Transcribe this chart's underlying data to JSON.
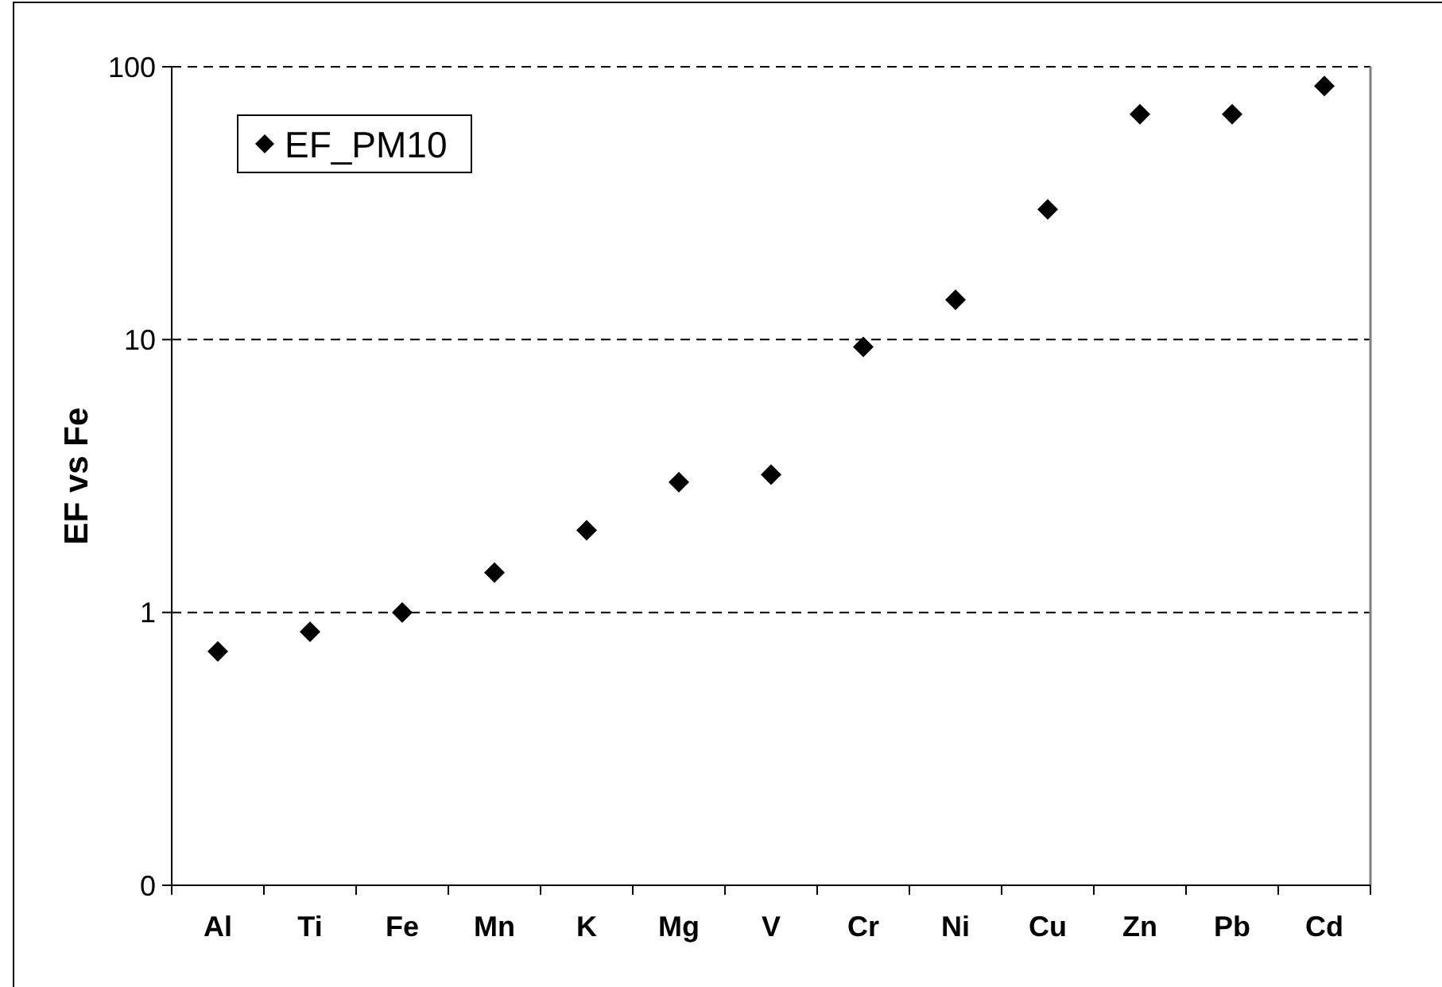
{
  "chart_data": {
    "type": "scatter",
    "ylabel": "EF vs Fe",
    "categories": [
      "Al",
      "Ti",
      "Fe",
      "Mn",
      "K",
      "Mg",
      "V",
      "Cr",
      "Ni",
      "Cu",
      "Zn",
      "Pb",
      "Cd"
    ],
    "series": [
      {
        "name": "EF_PM10",
        "color": "#000000",
        "values": [
          0.72,
          0.85,
          1.0,
          1.4,
          2.0,
          3.0,
          3.2,
          9.4,
          14,
          30,
          67,
          67,
          85
        ]
      }
    ],
    "ylim": [
      0.1,
      100
    ],
    "yticks": [
      {
        "value": 0.1,
        "label": "0"
      },
      1,
      10,
      100
    ],
    "log": true,
    "grid": "y",
    "legend": "top left",
    "marker": "diamond"
  }
}
